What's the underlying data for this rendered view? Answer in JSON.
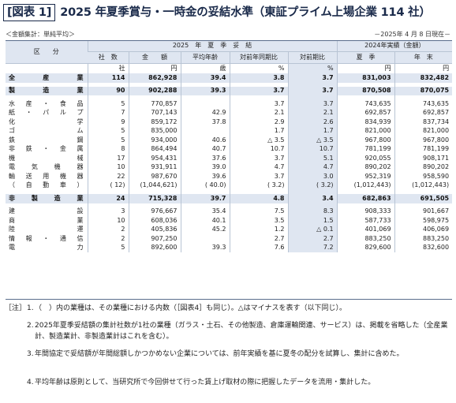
{
  "title": {
    "fig_label": "[図表 1]",
    "text": "2025 年夏季賞与・一時金の妥結水準（東証プライム上場企業 114 社）"
  },
  "subtitle_left": "＜金額集計：単純平均＞",
  "subtitle_right": "－2025年 4 月 8 日現在－",
  "table": {
    "header": {
      "kubun": "区　　分",
      "group_2025": "2025　年　夏　季　妥　結",
      "group_2024": "2024年実績（金額）",
      "cols": [
        "社　数",
        "金　　額",
        "平均年齢",
        "対前年同期比",
        "対前期比",
        "夏　季",
        "年　末"
      ]
    },
    "units": [
      "社",
      "円",
      "歳",
      "%",
      "%",
      "円",
      "円"
    ],
    "rows": [
      {
        "label": "全　産　業",
        "cells": [
          "114",
          "862,928",
          "39.4",
          "3.8",
          "3.7",
          "831,003",
          "832,482"
        ]
      },
      {
        "label": "製　造　業",
        "cells": [
          "90",
          "902,288",
          "39.3",
          "3.7",
          "3.7",
          "870,508",
          "870,075"
        ]
      },
      {
        "label": "水産・食品",
        "cells": [
          "5",
          "770,857",
          "",
          "3.7",
          "3.7",
          "743,635",
          "743,635"
        ]
      },
      {
        "label": "紙・パルプ",
        "cells": [
          "7",
          "707,143",
          "42.9",
          "2.1",
          "2.1",
          "692,857",
          "692,857"
        ]
      },
      {
        "label": "化学",
        "cells": [
          "9",
          "859,172",
          "37.8",
          "2.9",
          "2.6",
          "834,939",
          "837,734"
        ]
      },
      {
        "label": "ゴム",
        "cells": [
          "5",
          "835,000",
          "",
          "1.7",
          "1.7",
          "821,000",
          "821,000"
        ]
      },
      {
        "label": "鉄鋼",
        "cells": [
          "5",
          "934,000",
          "40.6",
          "△ 3.5",
          "△ 3.5",
          "967,800",
          "967,800"
        ]
      },
      {
        "label": "非鉄・金属",
        "cells": [
          "8",
          "864,494",
          "40.7",
          "10.7",
          "10.7",
          "781,199",
          "781,199"
        ]
      },
      {
        "label": "機械",
        "cells": [
          "17",
          "954,431",
          "37.6",
          "3.7",
          "5.1",
          "920,055",
          "908,171"
        ]
      },
      {
        "label": "電気機器",
        "cells": [
          "10",
          "931,911",
          "39.0",
          "4.7",
          "4.7",
          "890,202",
          "890,202"
        ]
      },
      {
        "label": "輸送用機器",
        "cells": [
          "22",
          "987,670",
          "39.6",
          "3.7",
          "3.0",
          "952,319",
          "958,590"
        ]
      },
      {
        "label": "（自動車）",
        "cells": [
          "( 12)",
          "(1,044,621)",
          "( 40.0)",
          "( 3.2)",
          "( 3.2)",
          "(1,012,443)",
          "(1,012,443)"
        ]
      },
      {
        "label": "非　製　造　業",
        "cells": [
          "24",
          "715,328",
          "39.7",
          "4.8",
          "3.4",
          "682,863",
          "691,505"
        ]
      },
      {
        "label": "建設",
        "cells": [
          "3",
          "976,667",
          "35.4",
          "7.5",
          "8.3",
          "908,333",
          "901,667"
        ]
      },
      {
        "label": "商業",
        "cells": [
          "10",
          "608,036",
          "40.1",
          "3.5",
          "1.5",
          "587,733",
          "598,975"
        ]
      },
      {
        "label": "陸運",
        "cells": [
          "2",
          "405,836",
          "45.2",
          "1.2",
          "△ 0.1",
          "401,069",
          "406,069"
        ]
      },
      {
        "label": "情報・通信",
        "cells": [
          "2",
          "907,250",
          "",
          "2.7",
          "2.7",
          "883,250",
          "883,250"
        ]
      },
      {
        "label": "電力",
        "cells": [
          "5",
          "892,600",
          "39.3",
          "7.6",
          "7.2",
          "829,600",
          "832,600"
        ]
      }
    ]
  },
  "notes": {
    "label": "［注］",
    "items": [
      {
        "num": "1.",
        "text": "（　）内の業種は、その業種における内数（［図表4］も同じ）。△はマイナスを表す（以下同じ）。"
      },
      {
        "num": "2.",
        "text": "2025年夏季妥結額の集計社数が1社の業種（ガラス・土石、その他製造、倉庫運輸関連、サービス）は、掲載を省略した（全産業計、製造業計、非製造業計はこれを含む）。"
      },
      {
        "num": "3.",
        "text": "年間協定で妥結額が年間総額しかつかめない企業については、前年実績を基に夏冬の配分を試算し、集計に含めた。"
      },
      {
        "num": "4.",
        "text": "平均年齢は原則として、当研究所で今回併せて行った賃上げ取材の際に把握したデータを流用・集計した。"
      }
    ]
  }
}
